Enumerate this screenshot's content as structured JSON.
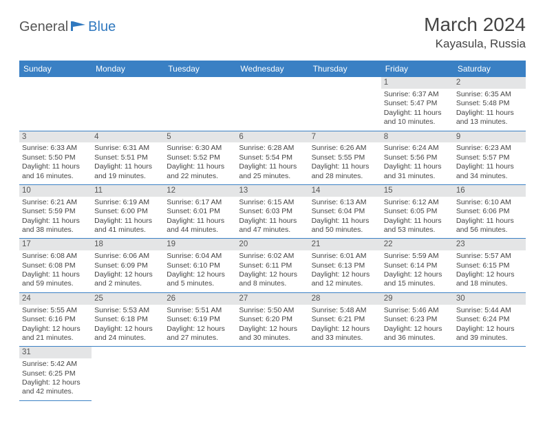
{
  "logo": {
    "general": "General",
    "blue": "Blue"
  },
  "title": "March 2024",
  "location": "Kayasula, Russia",
  "header_bg": "#3a80c4",
  "header_fg": "#ffffff",
  "daynum_bg": "#e4e5e6",
  "text_color": "#444444",
  "weekdays": [
    "Sunday",
    "Monday",
    "Tuesday",
    "Wednesday",
    "Thursday",
    "Friday",
    "Saturday"
  ],
  "weeks": [
    [
      null,
      null,
      null,
      null,
      null,
      {
        "d": "1",
        "sunrise": "6:37 AM",
        "sunset": "5:47 PM",
        "dl": "11 hours and 10 minutes."
      },
      {
        "d": "2",
        "sunrise": "6:35 AM",
        "sunset": "5:48 PM",
        "dl": "11 hours and 13 minutes."
      }
    ],
    [
      {
        "d": "3",
        "sunrise": "6:33 AM",
        "sunset": "5:50 PM",
        "dl": "11 hours and 16 minutes."
      },
      {
        "d": "4",
        "sunrise": "6:31 AM",
        "sunset": "5:51 PM",
        "dl": "11 hours and 19 minutes."
      },
      {
        "d": "5",
        "sunrise": "6:30 AM",
        "sunset": "5:52 PM",
        "dl": "11 hours and 22 minutes."
      },
      {
        "d": "6",
        "sunrise": "6:28 AM",
        "sunset": "5:54 PM",
        "dl": "11 hours and 25 minutes."
      },
      {
        "d": "7",
        "sunrise": "6:26 AM",
        "sunset": "5:55 PM",
        "dl": "11 hours and 28 minutes."
      },
      {
        "d": "8",
        "sunrise": "6:24 AM",
        "sunset": "5:56 PM",
        "dl": "11 hours and 31 minutes."
      },
      {
        "d": "9",
        "sunrise": "6:23 AM",
        "sunset": "5:57 PM",
        "dl": "11 hours and 34 minutes."
      }
    ],
    [
      {
        "d": "10",
        "sunrise": "6:21 AM",
        "sunset": "5:59 PM",
        "dl": "11 hours and 38 minutes."
      },
      {
        "d": "11",
        "sunrise": "6:19 AM",
        "sunset": "6:00 PM",
        "dl": "11 hours and 41 minutes."
      },
      {
        "d": "12",
        "sunrise": "6:17 AM",
        "sunset": "6:01 PM",
        "dl": "11 hours and 44 minutes."
      },
      {
        "d": "13",
        "sunrise": "6:15 AM",
        "sunset": "6:03 PM",
        "dl": "11 hours and 47 minutes."
      },
      {
        "d": "14",
        "sunrise": "6:13 AM",
        "sunset": "6:04 PM",
        "dl": "11 hours and 50 minutes."
      },
      {
        "d": "15",
        "sunrise": "6:12 AM",
        "sunset": "6:05 PM",
        "dl": "11 hours and 53 minutes."
      },
      {
        "d": "16",
        "sunrise": "6:10 AM",
        "sunset": "6:06 PM",
        "dl": "11 hours and 56 minutes."
      }
    ],
    [
      {
        "d": "17",
        "sunrise": "6:08 AM",
        "sunset": "6:08 PM",
        "dl": "11 hours and 59 minutes."
      },
      {
        "d": "18",
        "sunrise": "6:06 AM",
        "sunset": "6:09 PM",
        "dl": "12 hours and 2 minutes."
      },
      {
        "d": "19",
        "sunrise": "6:04 AM",
        "sunset": "6:10 PM",
        "dl": "12 hours and 5 minutes."
      },
      {
        "d": "20",
        "sunrise": "6:02 AM",
        "sunset": "6:11 PM",
        "dl": "12 hours and 8 minutes."
      },
      {
        "d": "21",
        "sunrise": "6:01 AM",
        "sunset": "6:13 PM",
        "dl": "12 hours and 12 minutes."
      },
      {
        "d": "22",
        "sunrise": "5:59 AM",
        "sunset": "6:14 PM",
        "dl": "12 hours and 15 minutes."
      },
      {
        "d": "23",
        "sunrise": "5:57 AM",
        "sunset": "6:15 PM",
        "dl": "12 hours and 18 minutes."
      }
    ],
    [
      {
        "d": "24",
        "sunrise": "5:55 AM",
        "sunset": "6:16 PM",
        "dl": "12 hours and 21 minutes."
      },
      {
        "d": "25",
        "sunrise": "5:53 AM",
        "sunset": "6:18 PM",
        "dl": "12 hours and 24 minutes."
      },
      {
        "d": "26",
        "sunrise": "5:51 AM",
        "sunset": "6:19 PM",
        "dl": "12 hours and 27 minutes."
      },
      {
        "d": "27",
        "sunrise": "5:50 AM",
        "sunset": "6:20 PM",
        "dl": "12 hours and 30 minutes."
      },
      {
        "d": "28",
        "sunrise": "5:48 AM",
        "sunset": "6:21 PM",
        "dl": "12 hours and 33 minutes."
      },
      {
        "d": "29",
        "sunrise": "5:46 AM",
        "sunset": "6:23 PM",
        "dl": "12 hours and 36 minutes."
      },
      {
        "d": "30",
        "sunrise": "5:44 AM",
        "sunset": "6:24 PM",
        "dl": "12 hours and 39 minutes."
      }
    ],
    [
      {
        "d": "31",
        "sunrise": "5:42 AM",
        "sunset": "6:25 PM",
        "dl": "12 hours and 42 minutes."
      },
      null,
      null,
      null,
      null,
      null,
      null
    ]
  ]
}
